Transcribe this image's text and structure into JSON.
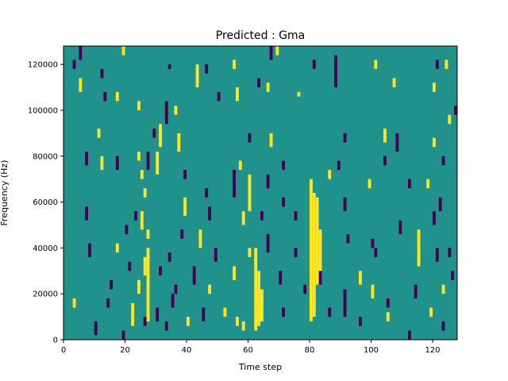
{
  "chart_data": {
    "type": "heatmap",
    "title": "Predicted : Gma",
    "xlabel": "Time step",
    "ylabel": "Frequency (Hz)",
    "xlim": [
      0,
      128
    ],
    "ylim": [
      0,
      128000
    ],
    "x_ticks": [
      0,
      20,
      40,
      60,
      80,
      100,
      120
    ],
    "y_ticks": [
      0,
      20000,
      40000,
      60000,
      80000,
      100000,
      120000
    ],
    "y_tick_labels": [
      "0",
      "20000",
      "40000",
      "60000",
      "80000",
      "100000",
      "120000"
    ],
    "colormap": "viridis",
    "background_value": 0,
    "value_colors": {
      "-1": "#440154",
      "0": "#21918c",
      "1": "#fde725"
    },
    "n_time_steps": 128,
    "n_freq_bins": 128,
    "freq_bin_width_hz": 1000,
    "active_cells": [
      {
        "t": 5,
        "f0": 122000,
        "f1": 128000,
        "v": -1
      },
      {
        "t": 3,
        "f0": 118000,
        "f1": 122000,
        "v": -1
      },
      {
        "t": 12,
        "f0": 114000,
        "f1": 118000,
        "v": -1
      },
      {
        "t": 19,
        "f0": 124000,
        "f1": 128000,
        "v": 1
      },
      {
        "t": 34,
        "f0": 118000,
        "f1": 120000,
        "v": -1
      },
      {
        "t": 43,
        "f0": 110000,
        "f1": 120000,
        "v": 1
      },
      {
        "t": 46,
        "f0": 116000,
        "f1": 120000,
        "v": -1
      },
      {
        "t": 55,
        "f0": 118000,
        "f1": 122000,
        "v": 1
      },
      {
        "t": 67,
        "f0": 122000,
        "f1": 128000,
        "v": -1
      },
      {
        "t": 69,
        "f0": 124000,
        "f1": 128000,
        "v": 1
      },
      {
        "t": 81,
        "f0": 118000,
        "f1": 122000,
        "v": -1
      },
      {
        "t": 88,
        "f0": 110000,
        "f1": 124000,
        "v": -1
      },
      {
        "t": 101,
        "f0": 118000,
        "f1": 122000,
        "v": 1
      },
      {
        "t": 121,
        "f0": 118000,
        "f1": 122000,
        "v": -1
      },
      {
        "t": 124,
        "f0": 118000,
        "f1": 122000,
        "v": 1
      },
      {
        "t": 5,
        "f0": 108000,
        "f1": 114000,
        "v": 1
      },
      {
        "t": 13,
        "f0": 104000,
        "f1": 108000,
        "v": -1
      },
      {
        "t": 17,
        "f0": 104000,
        "f1": 108000,
        "v": 1
      },
      {
        "t": 50,
        "f0": 104000,
        "f1": 108000,
        "v": -1
      },
      {
        "t": 56,
        "f0": 104000,
        "f1": 110000,
        "v": 1
      },
      {
        "t": 63,
        "f0": 110000,
        "f1": 114000,
        "v": -1
      },
      {
        "t": 66,
        "f0": 108000,
        "f1": 112000,
        "v": 1
      },
      {
        "t": 76,
        "f0": 106000,
        "f1": 108000,
        "v": 1
      },
      {
        "t": 107,
        "f0": 110000,
        "f1": 114000,
        "v": 1
      },
      {
        "t": 120,
        "f0": 108000,
        "f1": 112000,
        "v": 1
      },
      {
        "t": 24,
        "f0": 100000,
        "f1": 104000,
        "v": 1
      },
      {
        "t": 33,
        "f0": 94000,
        "f1": 104000,
        "v": -1
      },
      {
        "t": 36,
        "f0": 98000,
        "f1": 102000,
        "v": 1
      },
      {
        "t": 127,
        "f0": 98000,
        "f1": 102000,
        "v": -1
      },
      {
        "t": 125,
        "f0": 94000,
        "f1": 98000,
        "v": 1
      },
      {
        "t": 11,
        "f0": 88000,
        "f1": 92000,
        "v": 1
      },
      {
        "t": 29,
        "f0": 88000,
        "f1": 92000,
        "v": -1
      },
      {
        "t": 31,
        "f0": 84000,
        "f1": 94000,
        "v": 1
      },
      {
        "t": 37,
        "f0": 82000,
        "f1": 90000,
        "v": 1
      },
      {
        "t": 60,
        "f0": 86000,
        "f1": 90000,
        "v": -1
      },
      {
        "t": 67,
        "f0": 84000,
        "f1": 90000,
        "v": 1
      },
      {
        "t": 91,
        "f0": 86000,
        "f1": 90000,
        "v": -1
      },
      {
        "t": 104,
        "f0": 86000,
        "f1": 92000,
        "v": 1
      },
      {
        "t": 108,
        "f0": 82000,
        "f1": 90000,
        "v": -1
      },
      {
        "t": 120,
        "f0": 84000,
        "f1": 88000,
        "v": 1
      },
      {
        "t": 7,
        "f0": 76000,
        "f1": 82000,
        "v": -1
      },
      {
        "t": 12,
        "f0": 74000,
        "f1": 80000,
        "v": 1
      },
      {
        "t": 17,
        "f0": 74000,
        "f1": 80000,
        "v": -1
      },
      {
        "t": 24,
        "f0": 78000,
        "f1": 82000,
        "v": 1
      },
      {
        "t": 27,
        "f0": 74000,
        "f1": 82000,
        "v": -1
      },
      {
        "t": 30,
        "f0": 72000,
        "f1": 82000,
        "v": 1
      },
      {
        "t": 57,
        "f0": 74000,
        "f1": 78000,
        "v": 1
      },
      {
        "t": 71,
        "f0": 74000,
        "f1": 78000,
        "v": -1
      },
      {
        "t": 89,
        "f0": 74000,
        "f1": 78000,
        "v": -1
      },
      {
        "t": 104,
        "f0": 76000,
        "f1": 80000,
        "v": -1
      },
      {
        "t": 123,
        "f0": 76000,
        "f1": 80000,
        "v": -1
      },
      {
        "t": 25,
        "f0": 70000,
        "f1": 74000,
        "v": 1
      },
      {
        "t": 39,
        "f0": 70000,
        "f1": 74000,
        "v": -1
      },
      {
        "t": 55,
        "f0": 62000,
        "f1": 74000,
        "v": -1
      },
      {
        "t": 60,
        "f0": 66000,
        "f1": 72000,
        "v": 1
      },
      {
        "t": 66,
        "f0": 66000,
        "f1": 72000,
        "v": -1
      },
      {
        "t": 86,
        "f0": 70000,
        "f1": 74000,
        "v": 1
      },
      {
        "t": 99,
        "f0": 66000,
        "f1": 70000,
        "v": 1
      },
      {
        "t": 112,
        "f0": 66000,
        "f1": 70000,
        "v": -1
      },
      {
        "t": 118,
        "f0": 66000,
        "f1": 70000,
        "v": 1
      },
      {
        "t": 26,
        "f0": 62000,
        "f1": 66000,
        "v": 1
      },
      {
        "t": 39,
        "f0": 54000,
        "f1": 62000,
        "v": 1
      },
      {
        "t": 46,
        "f0": 62000,
        "f1": 66000,
        "v": -1
      },
      {
        "t": 60,
        "f0": 56000,
        "f1": 66000,
        "v": 1
      },
      {
        "t": 71,
        "f0": 58000,
        "f1": 62000,
        "v": -1
      },
      {
        "t": 91,
        "f0": 56000,
        "f1": 62000,
        "v": -1
      },
      {
        "t": 122,
        "f0": 56000,
        "f1": 62000,
        "v": -1
      },
      {
        "t": 7,
        "f0": 52000,
        "f1": 58000,
        "v": -1
      },
      {
        "t": 23,
        "f0": 52000,
        "f1": 56000,
        "v": -1
      },
      {
        "t": 25,
        "f0": 48000,
        "f1": 56000,
        "v": 1
      },
      {
        "t": 47,
        "f0": 52000,
        "f1": 58000,
        "v": -1
      },
      {
        "t": 58,
        "f0": 50000,
        "f1": 56000,
        "v": 1
      },
      {
        "t": 64,
        "f0": 52000,
        "f1": 56000,
        "v": -1
      },
      {
        "t": 75,
        "f0": 52000,
        "f1": 56000,
        "v": -1
      },
      {
        "t": 109,
        "f0": 46000,
        "f1": 52000,
        "v": -1
      },
      {
        "t": 120,
        "f0": 50000,
        "f1": 56000,
        "v": -1
      },
      {
        "t": 20,
        "f0": 46000,
        "f1": 50000,
        "v": -1
      },
      {
        "t": 27,
        "f0": 44000,
        "f1": 48000,
        "v": 1
      },
      {
        "t": 38,
        "f0": 44000,
        "f1": 48000,
        "v": -1
      },
      {
        "t": 44,
        "f0": 40000,
        "f1": 48000,
        "v": 1
      },
      {
        "t": 66,
        "f0": 38000,
        "f1": 46000,
        "v": -1
      },
      {
        "t": 92,
        "f0": 42000,
        "f1": 46000,
        "v": -1
      },
      {
        "t": 115,
        "f0": 32000,
        "f1": 48000,
        "v": 1
      },
      {
        "t": 8,
        "f0": 36000,
        "f1": 42000,
        "v": -1
      },
      {
        "t": 17,
        "f0": 38000,
        "f1": 42000,
        "v": 1
      },
      {
        "t": 34,
        "f0": 34000,
        "f1": 38000,
        "v": -1
      },
      {
        "t": 49,
        "f0": 34000,
        "f1": 40000,
        "v": -1
      },
      {
        "t": 60,
        "f0": 36000,
        "f1": 40000,
        "v": 1
      },
      {
        "t": 75,
        "f0": 36000,
        "f1": 40000,
        "v": -1
      },
      {
        "t": 101,
        "f0": 36000,
        "f1": 40000,
        "v": -1
      },
      {
        "t": 125,
        "f0": 36000,
        "f1": 40000,
        "v": -1
      },
      {
        "t": 21,
        "f0": 30000,
        "f1": 34000,
        "v": -1
      },
      {
        "t": 26,
        "f0": 28000,
        "f1": 36000,
        "v": 1
      },
      {
        "t": 31,
        "f0": 28000,
        "f1": 32000,
        "v": -1
      },
      {
        "t": 42,
        "f0": 24000,
        "f1": 32000,
        "v": -1
      },
      {
        "t": 55,
        "f0": 26000,
        "f1": 32000,
        "v": 1
      },
      {
        "t": 70,
        "f0": 24000,
        "f1": 30000,
        "v": -1
      },
      {
        "t": 83,
        "f0": 24000,
        "f1": 30000,
        "v": -1
      },
      {
        "t": 96,
        "f0": 24000,
        "f1": 30000,
        "v": 1
      },
      {
        "t": 126,
        "f0": 26000,
        "f1": 30000,
        "v": -1
      },
      {
        "t": 15,
        "f0": 22000,
        "f1": 26000,
        "v": -1
      },
      {
        "t": 24,
        "f0": 20000,
        "f1": 26000,
        "v": 1
      },
      {
        "t": 36,
        "f0": 20000,
        "f1": 24000,
        "v": -1
      },
      {
        "t": 47,
        "f0": 20000,
        "f1": 24000,
        "v": 1
      },
      {
        "t": 78,
        "f0": 20000,
        "f1": 24000,
        "v": -1
      },
      {
        "t": 100,
        "f0": 18000,
        "f1": 24000,
        "v": 1
      },
      {
        "t": 114,
        "f0": 18000,
        "f1": 24000,
        "v": -1
      },
      {
        "t": 123,
        "f0": 20000,
        "f1": 24000,
        "v": 1
      },
      {
        "t": 3,
        "f0": 14000,
        "f1": 18000,
        "v": 1
      },
      {
        "t": 14,
        "f0": 14000,
        "f1": 18000,
        "v": -1
      },
      {
        "t": 35,
        "f0": 14000,
        "f1": 20000,
        "v": -1
      },
      {
        "t": 63,
        "f0": 14000,
        "f1": 18000,
        "v": -1
      },
      {
        "t": 91,
        "f0": 10000,
        "f1": 22000,
        "v": -1
      },
      {
        "t": 105,
        "f0": 14000,
        "f1": 18000,
        "v": -1
      },
      {
        "t": 22,
        "f0": 6000,
        "f1": 16000,
        "v": 1
      },
      {
        "t": 30,
        "f0": 8000,
        "f1": 14000,
        "v": -1
      },
      {
        "t": 45,
        "f0": 8000,
        "f1": 14000,
        "v": -1
      },
      {
        "t": 52,
        "f0": 10000,
        "f1": 14000,
        "v": 1
      },
      {
        "t": 71,
        "f0": 10000,
        "f1": 14000,
        "v": -1
      },
      {
        "t": 86,
        "f0": 10000,
        "f1": 14000,
        "v": -1
      },
      {
        "t": 119,
        "f0": 10000,
        "f1": 14000,
        "v": 1
      },
      {
        "t": 10,
        "f0": 2000,
        "f1": 8000,
        "v": -1
      },
      {
        "t": 26,
        "f0": 6000,
        "f1": 10000,
        "v": -1
      },
      {
        "t": 33,
        "f0": 4000,
        "f1": 8000,
        "v": -1
      },
      {
        "t": 40,
        "f0": 6000,
        "f1": 10000,
        "v": 1
      },
      {
        "t": 58,
        "f0": 4000,
        "f1": 8000,
        "v": 1
      },
      {
        "t": 96,
        "f0": 6000,
        "f1": 10000,
        "v": -1
      },
      {
        "t": 123,
        "f0": 4000,
        "f1": 8000,
        "v": -1
      },
      {
        "t": 19,
        "f0": 0,
        "f1": 4000,
        "v": -1
      },
      {
        "t": 112,
        "f0": 0,
        "f1": 4000,
        "v": -1
      },
      {
        "t": 62,
        "f0": 4000,
        "f1": 40000,
        "v": 1
      },
      {
        "t": 63,
        "f0": 6000,
        "f1": 30000,
        "v": 1
      },
      {
        "t": 64,
        "f0": 8000,
        "f1": 22000,
        "v": 1
      },
      {
        "t": 80,
        "f0": 8000,
        "f1": 70000,
        "v": 1
      },
      {
        "t": 81,
        "f0": 10000,
        "f1": 64000,
        "v": 1
      },
      {
        "t": 82,
        "f0": 24000,
        "f1": 62000,
        "v": 1
      },
      {
        "t": 83,
        "f0": 30000,
        "f1": 48000,
        "v": 1
      },
      {
        "t": 56,
        "f0": 6000,
        "f1": 10000,
        "v": 1
      },
      {
        "t": 27,
        "f0": 8000,
        "f1": 40000,
        "v": 1
      },
      {
        "t": 100,
        "f0": 40000,
        "f1": 44000,
        "v": -1
      },
      {
        "t": 105,
        "f0": 8000,
        "f1": 12000,
        "v": 1
      },
      {
        "t": 121,
        "f0": 34000,
        "f1": 40000,
        "v": -1
      }
    ]
  }
}
